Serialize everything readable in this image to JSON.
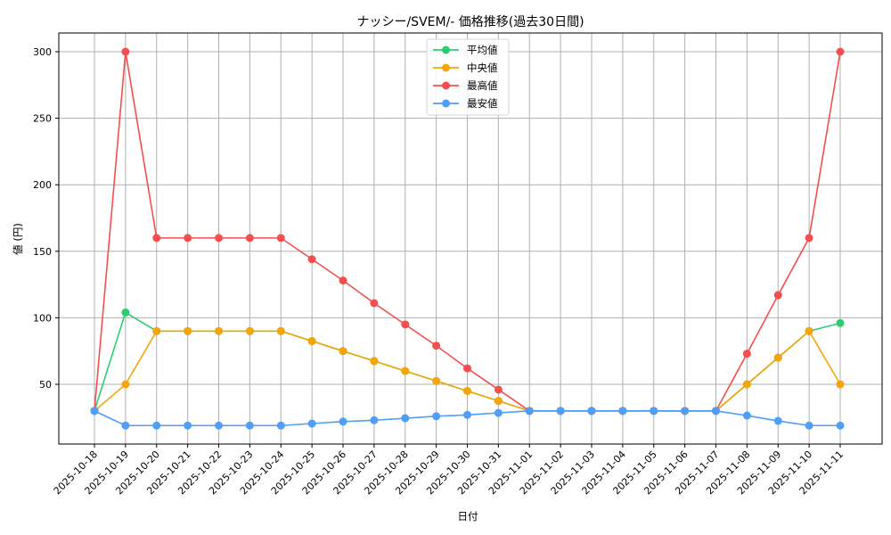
{
  "chart_data": {
    "type": "line",
    "title": "ナッシー/SVEM/- 価格推移(過去30日間)",
    "xlabel": "日付",
    "ylabel": "値 (円)",
    "ylim": [
      12,
      314
    ],
    "yticks": [
      50,
      100,
      150,
      200,
      250,
      300
    ],
    "grid": true,
    "legend_position": "upper center",
    "categories": [
      "2025-10-18",
      "2025-10-19",
      "2025-10-20",
      "2025-10-21",
      "2025-10-22",
      "2025-10-23",
      "2025-10-24",
      "2025-10-25",
      "2025-10-26",
      "2025-10-27",
      "2025-10-28",
      "2025-10-29",
      "2025-10-30",
      "2025-10-31",
      "2025-11-01",
      "2025-11-02",
      "2025-11-03",
      "2025-11-04",
      "2025-11-05",
      "2025-11-06",
      "2025-11-07",
      "2025-11-08",
      "2025-11-09",
      "2025-11-10",
      "2025-11-11"
    ],
    "series": [
      {
        "name": "平均値",
        "color": "#2ecc71",
        "values": [
          30,
          104,
          90,
          90,
          90,
          90,
          90,
          82.5,
          75,
          67.5,
          60,
          52.5,
          45,
          37.5,
          30,
          30,
          30,
          30,
          30,
          30,
          30,
          50,
          70,
          90,
          96
        ]
      },
      {
        "name": "中央値",
        "color": "#f5a50a",
        "values": [
          30,
          50,
          90,
          90,
          90,
          90,
          90,
          82.5,
          75,
          67.5,
          60,
          52.5,
          45,
          37.5,
          30,
          30,
          30,
          30,
          30,
          30,
          30,
          50,
          70,
          90,
          50
        ]
      },
      {
        "name": "最高値",
        "color": "#f44f4f",
        "values": [
          30,
          300,
          160,
          160,
          160,
          160,
          160,
          144,
          128,
          111,
          95,
          79,
          62,
          46,
          30,
          30,
          30,
          30,
          30,
          30,
          30,
          73,
          117,
          160,
          300
        ]
      },
      {
        "name": "最安値",
        "color": "#4f9ef8",
        "values": [
          30,
          19,
          19,
          19,
          19,
          19,
          19,
          20.5,
          22,
          23,
          24.5,
          26,
          27,
          28.5,
          30,
          30,
          30,
          30,
          30,
          30,
          30,
          26.5,
          22.5,
          19,
          19
        ]
      }
    ]
  }
}
